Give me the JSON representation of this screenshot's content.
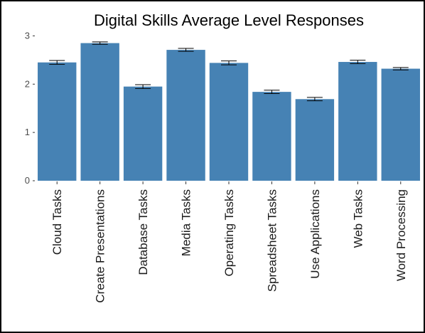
{
  "chart_data": {
    "type": "bar",
    "title": "Digital Skills Average Level Responses",
    "xlabel": "",
    "ylabel": "",
    "categories": [
      "Cloud Tasks",
      "Create Presentations",
      "Database Tasks",
      "Media Tasks",
      "Operating Tasks",
      "Spreadsheet Tasks",
      "Use Applications",
      "Web Tasks",
      "Word Processing"
    ],
    "values": [
      2.45,
      2.85,
      1.95,
      2.71,
      2.44,
      1.84,
      1.69,
      2.46,
      2.32
    ],
    "error": [
      0.04,
      0.025,
      0.04,
      0.03,
      0.04,
      0.035,
      0.035,
      0.035,
      0.025
    ],
    "ylim": [
      0,
      3.05
    ],
    "yticks": [
      0,
      1,
      2,
      3
    ],
    "ytick_labels": [
      "0",
      "1",
      "2",
      "3"
    ],
    "grid": false,
    "legend": "none",
    "bar_color": "#4682b4",
    "error_color": "#000000"
  }
}
